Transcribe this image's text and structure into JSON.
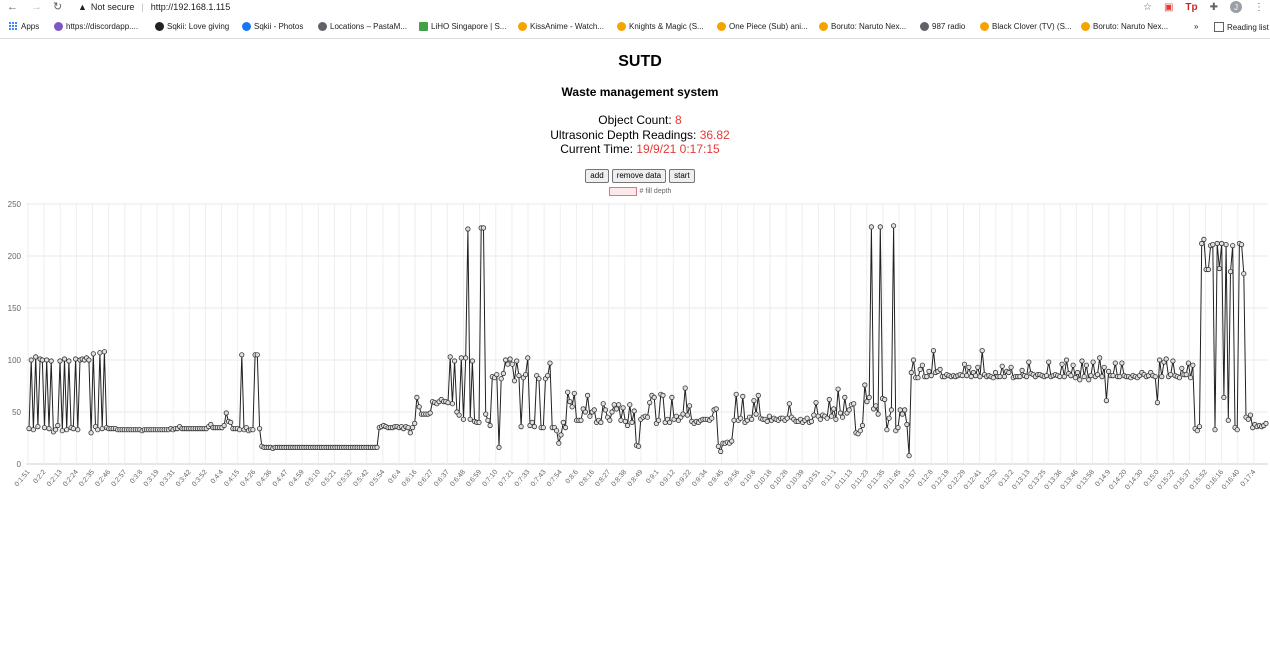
{
  "browser": {
    "security": "Not secure",
    "url": "http://192.168.1.115",
    "ext_label": "Tp",
    "avatar_letter": "J",
    "bookmarks": [
      "Apps",
      "https://discordapp....",
      "Sqkii: Love giving",
      "Sqkii - Photos",
      "Locations – PastaM...",
      "LiHO Singapore | S...",
      "KissAnime - Watch...",
      "Knights & Magic (S...",
      "One Piece (Sub) ani...",
      "Boruto: Naruto Nex...",
      "987 radio",
      "Black Clover (TV) (S...",
      "Boruto: Naruto Nex..."
    ],
    "overflow": "»",
    "reading_list": "Reading list"
  },
  "page": {
    "title": "SUTD",
    "subtitle": "Waste management system",
    "object_count_label": "Object Count: ",
    "object_count": "8",
    "depth_label": "Ultrasonic Depth Readings: ",
    "depth": "36.82",
    "time_label": "Current Time: ",
    "time": "19/9/21 0:17:15"
  },
  "buttons": {
    "add": "add",
    "remove": "remove data",
    "start": "start"
  },
  "chart_data": {
    "type": "line",
    "legend": "# fill depth",
    "legend_color": "#e57384",
    "line_color": "#222222",
    "ylim": [
      0,
      250
    ],
    "yticks": [
      0,
      50,
      100,
      150,
      200,
      250
    ],
    "grid": true,
    "x_tick_labels": [
      "0:1:51",
      "0:2:2",
      "0:2:13",
      "0:2:24",
      "0:2:35",
      "0:2:46",
      "0:2:57",
      "0:3:8",
      "0:3:19",
      "0:3:31",
      "0:3:42",
      "0:3:52",
      "0:4:4",
      "0:4:15",
      "0:4:26",
      "0:4:36",
      "0:4:47",
      "0:4:59",
      "0:5:10",
      "0:5:21",
      "0:5:32",
      "0:5:42",
      "0:5:54",
      "0:6:4",
      "0:6:16",
      "0:6:27",
      "0:6:37",
      "0:6:48",
      "0:6:59",
      "0:7:10",
      "0:7:21",
      "0:7:33",
      "0:7:43",
      "0:7:54",
      "0:8:6",
      "0:8:16",
      "0:8:27",
      "0:8:38",
      "0:8:49",
      "0:9:1",
      "0:9:12",
      "0:9:22",
      "0:9:34",
      "0:9:45",
      "0:9:56",
      "0:10:6",
      "0:10:18",
      "0:10:28",
      "0:10:39",
      "0:10:51",
      "0:11:1",
      "0:11:13",
      "0:11:23",
      "0:11:35",
      "0:11:45",
      "0:11:57",
      "0:12:8",
      "0:12:19",
      "0:12:29",
      "0:12:41",
      "0:12:52",
      "0:13:2",
      "0:13:13",
      "0:13:25",
      "0:13:36",
      "0:13:46",
      "0:13:58",
      "0:14:9",
      "0:14:20",
      "0:14:30",
      "0:15:0",
      "0:15:22",
      "0:15:37",
      "0:15:52",
      "0:16:16",
      "0:16:40",
      "0:17:4"
    ],
    "values": [
      34,
      100,
      33,
      103,
      36,
      101,
      100,
      35,
      100,
      34,
      99,
      31,
      33,
      37,
      99,
      32,
      101,
      33,
      99,
      35,
      34,
      101,
      33,
      100,
      101,
      100,
      102,
      100,
      30,
      106,
      36,
      33,
      107,
      34,
      108,
      35,
      34,
      34,
      34,
      34,
      33,
      33,
      33,
      33,
      33,
      33,
      33,
      33,
      33,
      33,
      33,
      32,
      33,
      33,
      33,
      33,
      33,
      33,
      33,
      33,
      33,
      33,
      33,
      33,
      34,
      33,
      34,
      34,
      36,
      34,
      34,
      34,
      34,
      34,
      34,
      34,
      34,
      34,
      34,
      34,
      34,
      36,
      38,
      35,
      35,
      35,
      35,
      35,
      37,
      49,
      41,
      40,
      34,
      34,
      34,
      33,
      105,
      33,
      35,
      32,
      33,
      33,
      105,
      105,
      34,
      17,
      16,
      16,
      16,
      16,
      15,
      16,
      16,
      16,
      16,
      16,
      16,
      16,
      16,
      16,
      16,
      16,
      16,
      16,
      16,
      16,
      16,
      16,
      16,
      16,
      16,
      16,
      16,
      16,
      16,
      16,
      16,
      16,
      16,
      16,
      16,
      16,
      16,
      16,
      16,
      16,
      16,
      16,
      16,
      16,
      16,
      16,
      16,
      16,
      16,
      16,
      16,
      16,
      35,
      36,
      37,
      36,
      35,
      35,
      35,
      36,
      36,
      35,
      36,
      34,
      36,
      35,
      30,
      35,
      39,
      64,
      55,
      48,
      48,
      48,
      48,
      49,
      60,
      59,
      58,
      60,
      62,
      60,
      60,
      59,
      103,
      58,
      99,
      50,
      47,
      102,
      43,
      102,
      226,
      43,
      99,
      41,
      40,
      40,
      227,
      227,
      48,
      42,
      37,
      84,
      83,
      86,
      16,
      82,
      87,
      100,
      96,
      101,
      96,
      80,
      99,
      85,
      36,
      83,
      86,
      102,
      37,
      40,
      36,
      85,
      82,
      35,
      35,
      82,
      85,
      97,
      35,
      35,
      32,
      20,
      28,
      40,
      35,
      69,
      60,
      55,
      68,
      42,
      42,
      42,
      53,
      50,
      66,
      46,
      50,
      52,
      40,
      42,
      40,
      58,
      52,
      45,
      42,
      50,
      57,
      53,
      57,
      42,
      54,
      41,
      37,
      57,
      40,
      51,
      18,
      17,
      43,
      45,
      46,
      45,
      59,
      66,
      64,
      39,
      42,
      67,
      66,
      40,
      43,
      40,
      64,
      43,
      46,
      42,
      45,
      48,
      73,
      47,
      56,
      41,
      39,
      41,
      40,
      42,
      43,
      43,
      43,
      42,
      44,
      52,
      53,
      17,
      12,
      20,
      20,
      21,
      20,
      22,
      42,
      67,
      42,
      44,
      65,
      40,
      42,
      45,
      43,
      61,
      48,
      66,
      44,
      43,
      43,
      41,
      46,
      42,
      44,
      43,
      42,
      44,
      44,
      42,
      44,
      58,
      45,
      43,
      41,
      41,
      43,
      40,
      42,
      44,
      40,
      41,
      47,
      59,
      46,
      43,
      47,
      46,
      44,
      62,
      46,
      53,
      43,
      72,
      49,
      45,
      64,
      49,
      52,
      57,
      58,
      30,
      29,
      32,
      37,
      76,
      60,
      64,
      228,
      53,
      56,
      48,
      228,
      63,
      62,
      33,
      44,
      52,
      229,
      32,
      35,
      52,
      48,
      52,
      38,
      8,
      88,
      100,
      83,
      83,
      91,
      95,
      84,
      84,
      89,
      85,
      109,
      88,
      89,
      91,
      84,
      84,
      86,
      85,
      84,
      85,
      84,
      85,
      86,
      85,
      96,
      85,
      93,
      84,
      88,
      85,
      93,
      84,
      109,
      86,
      84,
      85,
      84,
      83,
      88,
      84,
      84,
      94,
      84,
      89,
      88,
      93,
      83,
      84,
      84,
      84,
      90,
      85,
      84,
      98,
      87,
      86,
      84,
      86,
      86,
      85,
      84,
      85,
      98,
      84,
      85,
      86,
      85,
      84,
      96,
      84,
      100,
      87,
      85,
      95,
      83,
      88,
      81,
      99,
      84,
      95,
      81,
      85,
      98,
      84,
      86,
      102,
      84,
      93,
      61,
      89,
      85,
      85,
      97,
      84,
      84,
      97,
      85,
      84,
      84,
      83,
      85,
      84,
      83,
      85,
      88,
      86,
      84,
      85,
      88,
      85,
      84,
      59,
      100,
      84,
      98,
      101,
      84,
      86,
      99,
      85,
      84,
      83,
      92,
      86,
      86,
      97,
      83,
      95,
      34,
      32,
      36,
      212,
      216,
      187,
      187,
      210,
      211,
      33,
      212,
      188,
      212,
      64,
      211,
      42,
      185,
      210,
      35,
      33,
      212,
      211,
      183,
      45,
      43,
      47,
      35,
      38,
      36,
      37,
      36,
      37,
      39
    ]
  }
}
